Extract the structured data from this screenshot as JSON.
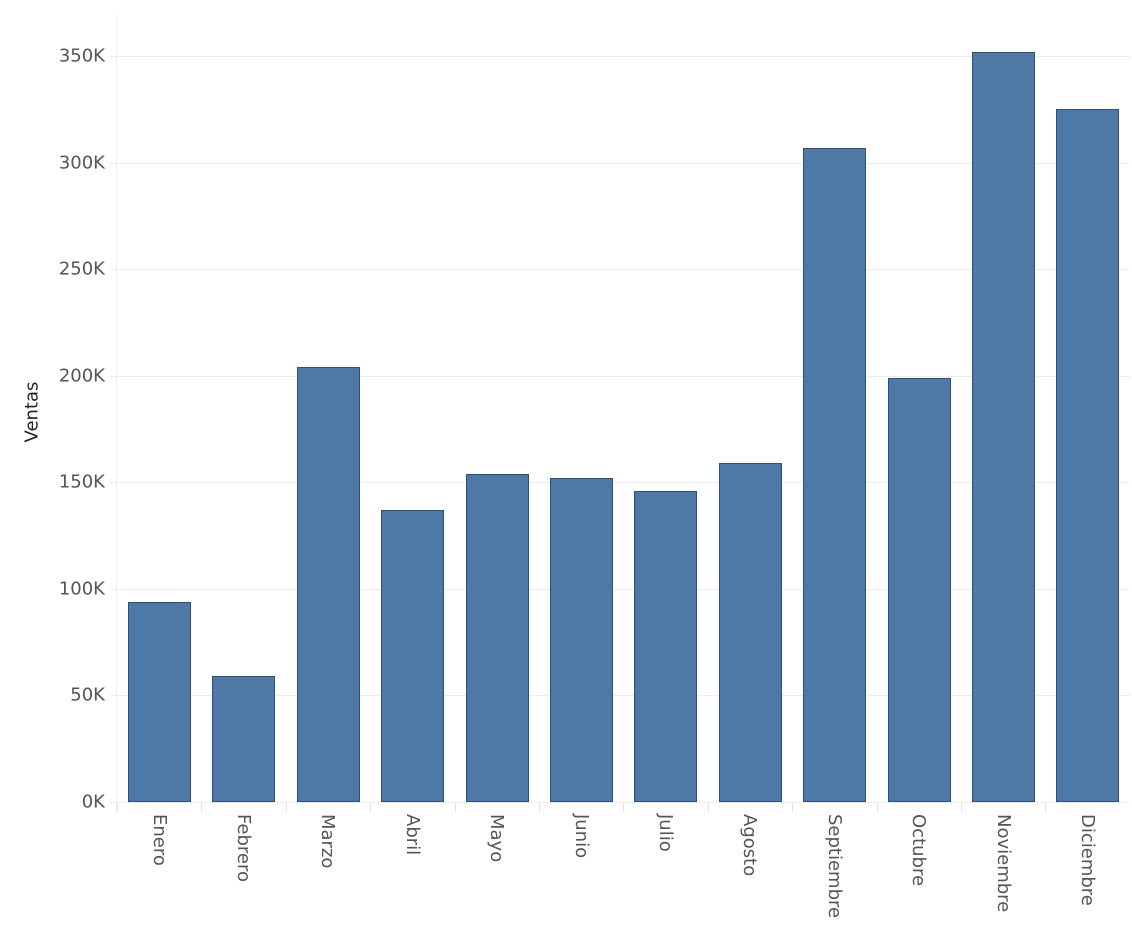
{
  "chart_data": {
    "type": "bar",
    "title": "",
    "xlabel": "",
    "ylabel": "Ventas",
    "ylim": [
      0,
      360000
    ],
    "grid": true,
    "categories": [
      "Enero",
      "Febrero",
      "Marzo",
      "Abril",
      "Mayo",
      "Junio",
      "Julio",
      "Agosto",
      "Septiembre",
      "Octubre",
      "Noviembre",
      "Diciembre"
    ],
    "values": [
      94000,
      59000,
      204000,
      137000,
      154000,
      152000,
      146000,
      159000,
      307000,
      199000,
      352000,
      325000
    ],
    "y_ticks": [
      "0K",
      "50K",
      "100K",
      "150K",
      "200K",
      "250K",
      "300K",
      "350K"
    ],
    "y_tick_values": [
      0,
      50000,
      100000,
      150000,
      200000,
      250000,
      300000,
      350000
    ],
    "bar_color": "#4e79a7",
    "bar_border_color": "#2f4f74"
  }
}
